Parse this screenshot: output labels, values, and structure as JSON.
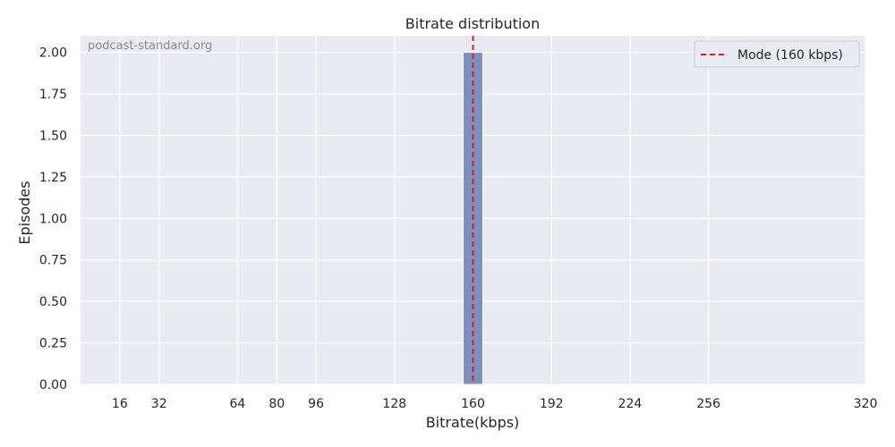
{
  "chart_data": {
    "type": "bar",
    "title": "Bitrate distribution",
    "xlabel": "Bitrate(kbps)",
    "ylabel": "Episodes",
    "watermark": "podcast-standard.org",
    "xlim": [
      0,
      320
    ],
    "ylim": [
      0,
      2.1
    ],
    "x_ticks": [
      16,
      32,
      64,
      80,
      96,
      128,
      160,
      192,
      224,
      256,
      320
    ],
    "y_ticks": [
      "0.00",
      "0.25",
      "0.50",
      "0.75",
      "1.00",
      "1.25",
      "1.50",
      "1.75",
      "2.00"
    ],
    "bars": [
      {
        "x_start": 156,
        "x_end": 164,
        "value": 2
      }
    ],
    "mode_line": {
      "x": 160,
      "label": "Mode (160 kbps)",
      "color": "#e41a1c",
      "style": "dashed"
    },
    "legend": {
      "placement": "top-right",
      "entries": [
        "Mode (160 kbps)"
      ]
    },
    "grid": true,
    "colors": {
      "background": "#eaeaf2",
      "grid": "#ffffff",
      "bar": "#7b90bb"
    }
  }
}
